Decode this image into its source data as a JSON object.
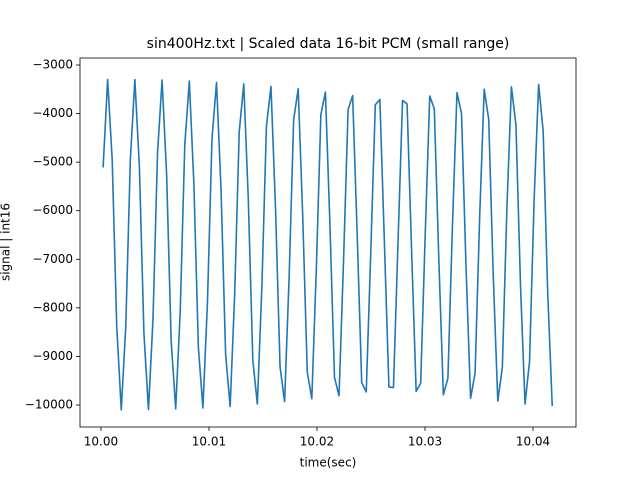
{
  "chart_data": {
    "type": "line",
    "title": "sin400Hz.txt | Scaled data 16-bit PCM (small range)",
    "x_label": "time(sec)",
    "y_label": "signal | int16",
    "x": [
      10.0002,
      10.00062,
      10.00104,
      10.00146,
      10.00188,
      10.0023,
      10.00272,
      10.00314,
      10.00356,
      10.00398,
      10.0044,
      10.00482,
      10.00524,
      10.00566,
      10.00608,
      10.0065,
      10.00692,
      10.00734,
      10.00776,
      10.00818,
      10.0086,
      10.00902,
      10.00944,
      10.00986,
      10.01028,
      10.0107,
      10.01112,
      10.01154,
      10.01196,
      10.01238,
      10.0128,
      10.01322,
      10.01364,
      10.01406,
      10.01448,
      10.0149,
      10.01532,
      10.01574,
      10.01616,
      10.01658,
      10.017,
      10.01742,
      10.01784,
      10.01826,
      10.01868,
      10.0191,
      10.01952,
      10.01994,
      10.02036,
      10.02078,
      10.0212,
      10.02162,
      10.02204,
      10.02246,
      10.02288,
      10.0233,
      10.02372,
      10.02414,
      10.02456,
      10.02498,
      10.0254,
      10.02582,
      10.02624,
      10.02666,
      10.02708,
      10.0275,
      10.02792,
      10.02834,
      10.02876,
      10.02918,
      10.0296,
      10.03002,
      10.03044,
      10.03086,
      10.03128,
      10.0317,
      10.03212,
      10.03254,
      10.03296,
      10.03338,
      10.0338,
      10.03422,
      10.03464,
      10.03506,
      10.03548,
      10.0359,
      10.03632,
      10.03674,
      10.03716,
      10.03758,
      10.038,
      10.03842,
      10.03884,
      10.03926,
      10.03968,
      10.0401,
      10.04052,
      10.04094,
      10.04136,
      10.04178
    ],
    "series": [
      {
        "color": "#1f77b4",
        "values": [
          -5110,
          -3300,
          -4950,
          -8370,
          -10100,
          -8370,
          -4950,
          -3300,
          -5105,
          -8530,
          -10095,
          -8220,
          -4800,
          -3310,
          -5260,
          -8680,
          -10080,
          -8060,
          -4650,
          -3330,
          -5430,
          -8820,
          -10060,
          -7890,
          -4510,
          -3360,
          -5590,
          -8950,
          -10030,
          -7720,
          -4380,
          -3390,
          -5760,
          -9080,
          -9980,
          -7550,
          -4260,
          -3440,
          -5940,
          -9210,
          -9930,
          -7380,
          -4130,
          -3490,
          -6110,
          -9320,
          -9870,
          -7200,
          -4020,
          -3560,
          -6290,
          -9430,
          -9810,
          -7030,
          -3920,
          -3630,
          -6460,
          -9540,
          -9730,
          -6850,
          -3820,
          -3710,
          -6640,
          -9630,
          -9640,
          -6670,
          -3730,
          -3800,
          -6820,
          -9720,
          -9550,
          -6490,
          -3640,
          -3900,
          -7000,
          -9790,
          -9450,
          -6320,
          -3570,
          -4000,
          -7170,
          -9860,
          -9340,
          -6140,
          -3500,
          -4120,
          -7350,
          -9920,
          -9230,
          -5970,
          -3450,
          -4230,
          -7520,
          -9980,
          -9100,
          -5790,
          -3400,
          -4360,
          -7690,
          -10020
        ]
      }
    ],
    "xlim": [
      9.99806,
      10.04398
    ],
    "ylim": [
      -10453,
      -2856
    ],
    "xticks": [
      {
        "value": 10,
        "label": "10.00"
      },
      10.01,
      10.02,
      10.03,
      10.04
    ],
    "yticks": [
      {
        "value": -10000,
        "label": "−10000"
      },
      {
        "value": -9000,
        "label": "−9000"
      },
      {
        "value": -8000,
        "label": "−8000"
      },
      {
        "value": -7000,
        "label": "−7000"
      },
      {
        "value": -6000,
        "label": "−6000"
      },
      {
        "value": -5000,
        "label": "−5000"
      },
      {
        "value": -4000,
        "label": "−4000"
      },
      {
        "value": -3000,
        "label": "−3000"
      }
    ]
  }
}
